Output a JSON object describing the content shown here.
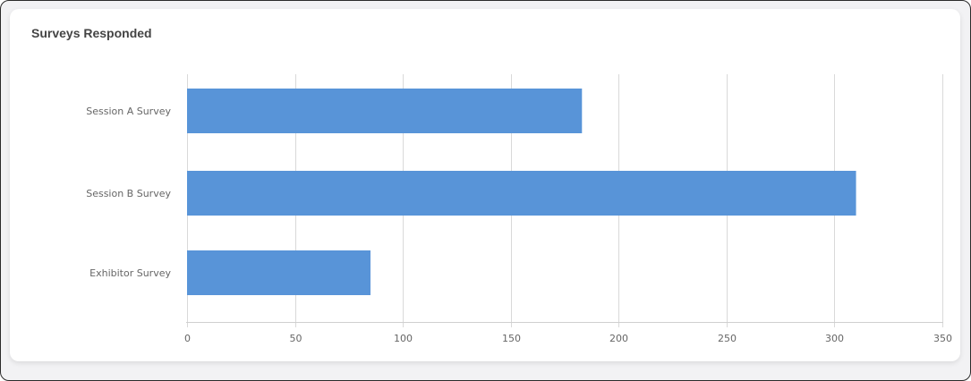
{
  "card": {
    "title": "Surveys Responded"
  },
  "chart_data": {
    "type": "bar",
    "orientation": "horizontal",
    "title": "Surveys Responded",
    "categories": [
      "Session A Survey",
      "Session B Survey",
      "Exhibitor Survey"
    ],
    "values": [
      183,
      310,
      85
    ],
    "xlabel": "",
    "ylabel": "",
    "xlim": [
      0,
      350
    ],
    "x_ticks": [
      0,
      50,
      100,
      150,
      200,
      250,
      300,
      350
    ],
    "grid": true,
    "legend": "none",
    "bar_color": "#5894d8"
  }
}
